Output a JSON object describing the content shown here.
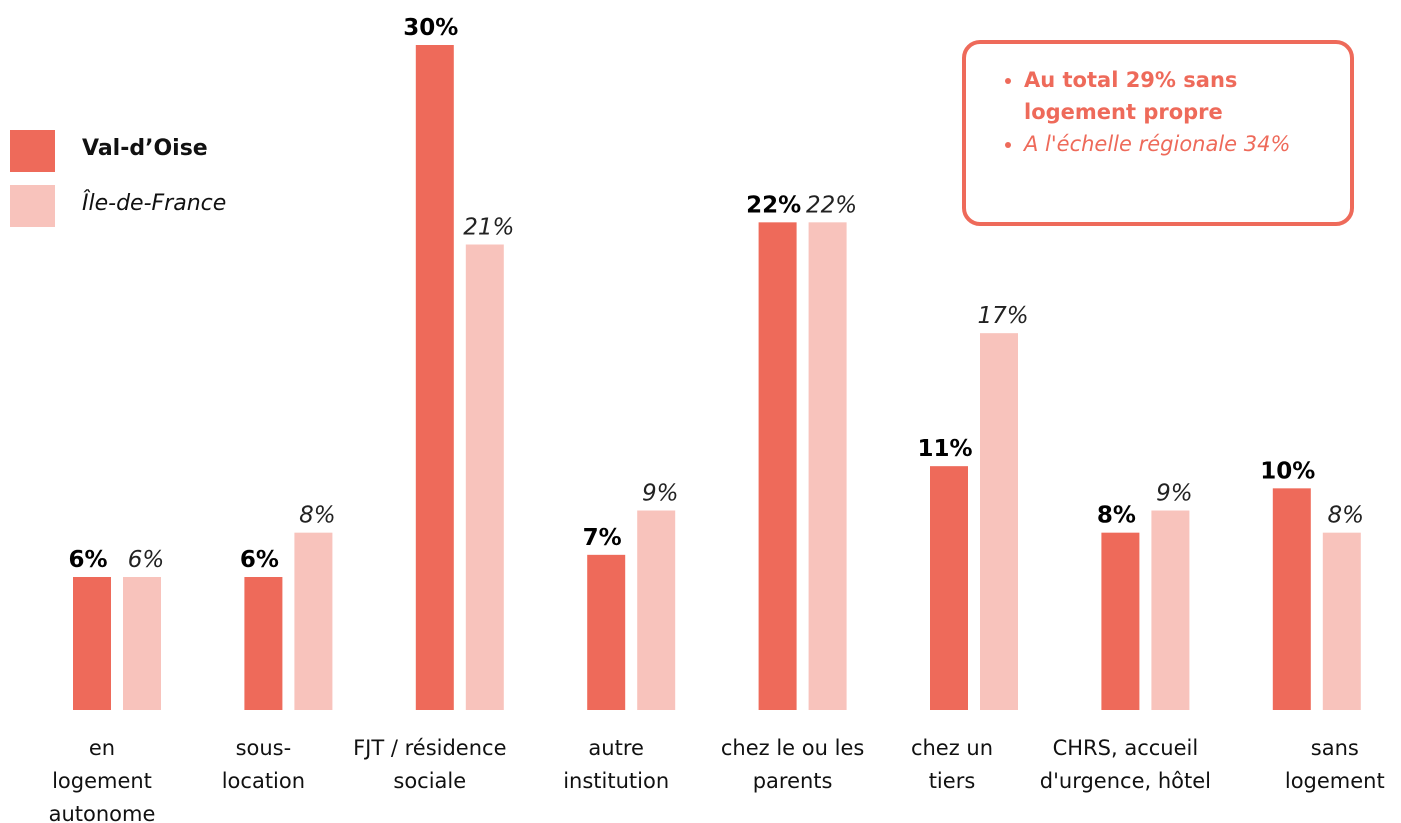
{
  "chart_data": {
    "type": "bar",
    "categories": [
      "en logement autonome",
      "sous-location",
      "FJT / résidence sociale",
      "autre institution",
      "chez le ou les parents",
      "chez un tiers",
      "CHRS, accueil d'urgence, hôtel",
      "sans logement"
    ],
    "series": [
      {
        "name": "Val-d’Oise",
        "color": "#ee6a5a",
        "values": [
          6,
          6,
          30,
          7,
          22,
          11,
          8,
          10
        ],
        "value_labels": [
          "6%",
          "6%",
          "30%",
          "7%",
          "22%",
          "11%",
          "8%",
          "10%"
        ]
      },
      {
        "name": "Île-de-France",
        "color": "#f8c3bc",
        "values": [
          6,
          8,
          21,
          9,
          22,
          17,
          9,
          8
        ],
        "value_labels": [
          "6%",
          "8%",
          "21%",
          "9%",
          "22%",
          "17%",
          "9%",
          "8%"
        ]
      }
    ],
    "legend": "top-left",
    "annotations": [
      "Au total 29% sans logement propre",
      "A l'échelle régionale 34%"
    ]
  }
}
